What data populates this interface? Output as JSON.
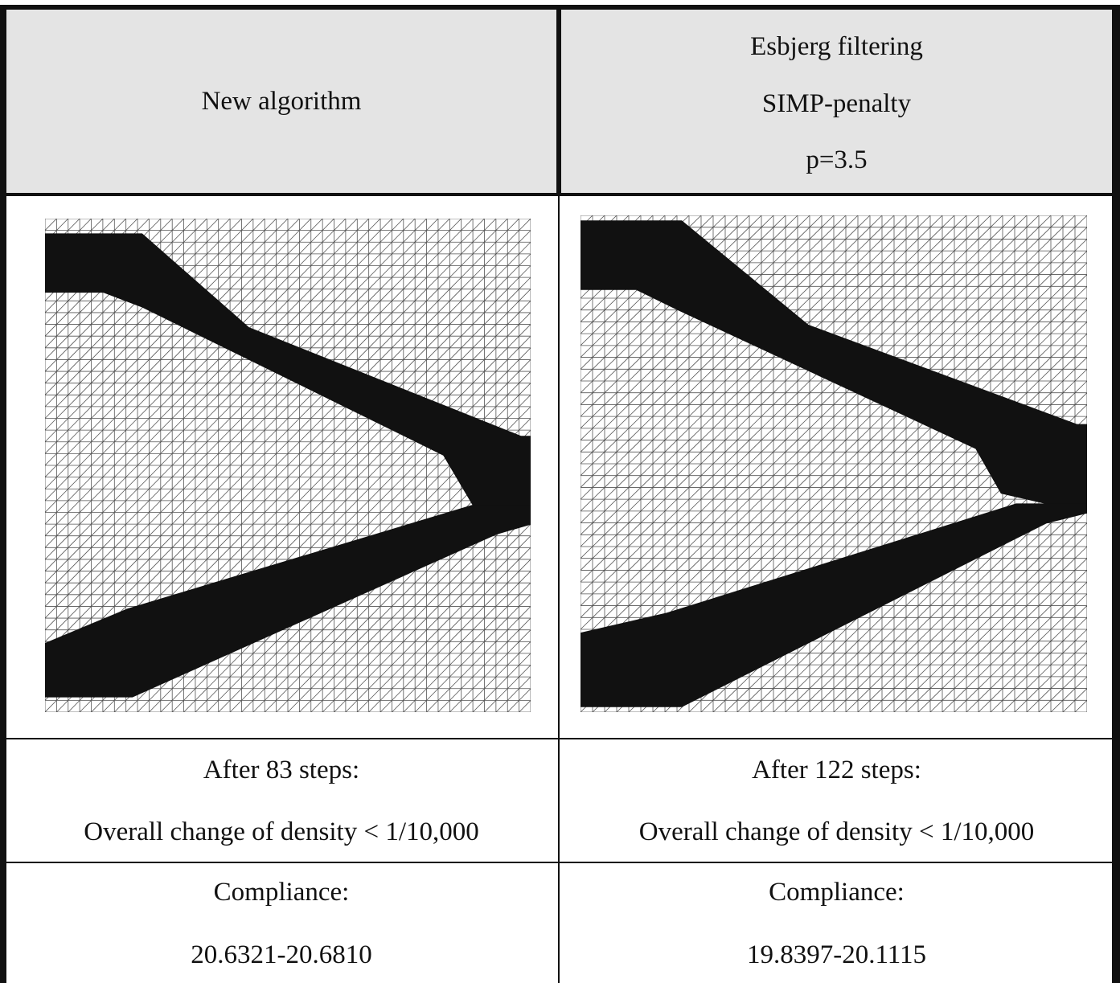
{
  "table": {
    "header": {
      "left": "New algorithm",
      "right_lines": [
        "Esbjerg filtering",
        "SIMP-penalty",
        "p=3.5"
      ]
    },
    "steps": {
      "left": {
        "line1": "After 83 steps:",
        "line2": "Overall change of density < 1/10,000"
      },
      "right": {
        "line1": "After 122 steps:",
        "line2": "Overall change of density < 1/10,000"
      }
    },
    "compliance": {
      "left": {
        "label": "Compliance:",
        "value": "20.6321-20.6810"
      },
      "right": {
        "label": "Compliance:",
        "value": "19.8397-20.1115"
      }
    }
  },
  "figures": {
    "left": {
      "grid_cols": 42,
      "grid_rows": 42,
      "material_color": "#111111",
      "grid_color": "#555555"
    },
    "right": {
      "grid_cols": 42,
      "grid_rows": 42,
      "material_color": "#111111",
      "grid_color": "#555555"
    }
  }
}
